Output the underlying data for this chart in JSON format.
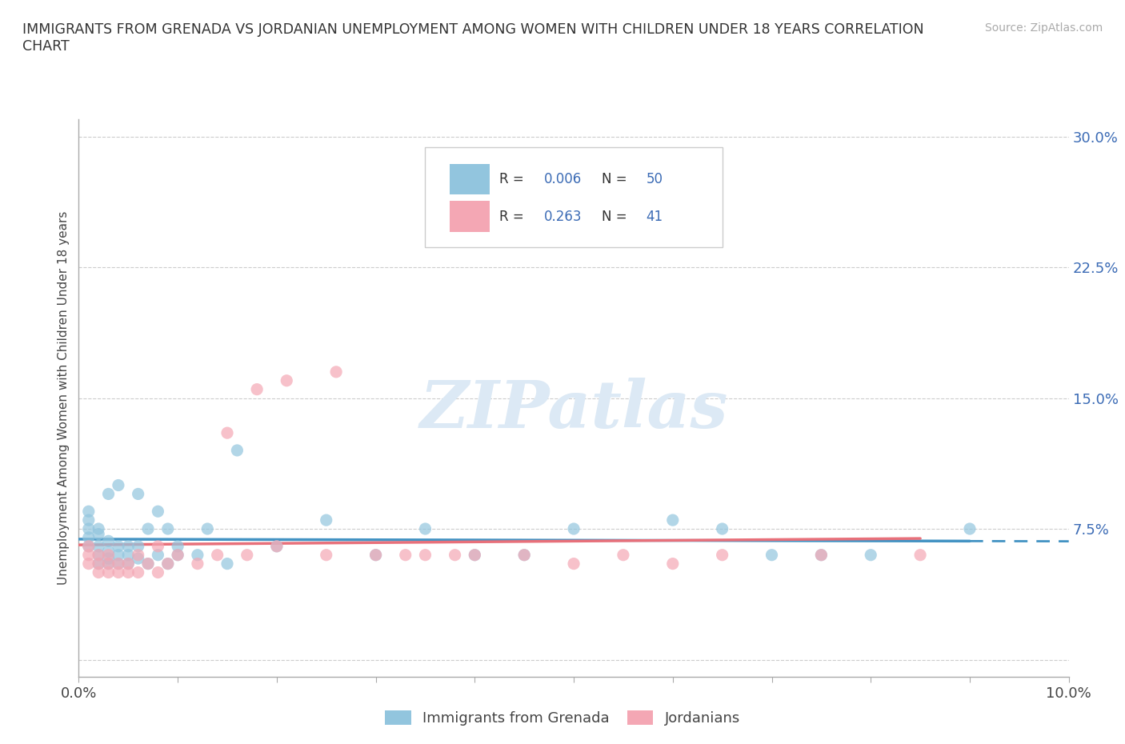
{
  "title": "IMMIGRANTS FROM GRENADA VS JORDANIAN UNEMPLOYMENT AMONG WOMEN WITH CHILDREN UNDER 18 YEARS CORRELATION\nCHART",
  "source": "Source: ZipAtlas.com",
  "ylabel": "Unemployment Among Women with Children Under 18 years",
  "xlim": [
    0.0,
    0.1
  ],
  "ylim": [
    -0.01,
    0.31
  ],
  "xticks": [
    0.0,
    0.01,
    0.02,
    0.03,
    0.04,
    0.05,
    0.06,
    0.07,
    0.08,
    0.09,
    0.1
  ],
  "xticklabels": [
    "0.0%",
    "",
    "",
    "",
    "",
    "",
    "",
    "",
    "",
    "",
    "10.0%"
  ],
  "yticks": [
    0.0,
    0.075,
    0.15,
    0.225,
    0.3
  ],
  "yticklabels": [
    "",
    "7.5%",
    "15.0%",
    "22.5%",
    "30.0%"
  ],
  "grenada_color": "#92c5de",
  "jordan_color": "#f4a7b4",
  "grenada_line_color": "#4393c3",
  "jordan_line_color": "#e8707a",
  "legend_color": "#3b6bb5",
  "watermark": "ZIPatlas",
  "watermark_color": "#dce9f5",
  "grenada_x": [
    0.001,
    0.001,
    0.001,
    0.001,
    0.001,
    0.002,
    0.002,
    0.002,
    0.002,
    0.002,
    0.003,
    0.003,
    0.003,
    0.003,
    0.003,
    0.004,
    0.004,
    0.004,
    0.004,
    0.005,
    0.005,
    0.005,
    0.006,
    0.006,
    0.006,
    0.007,
    0.007,
    0.008,
    0.008,
    0.009,
    0.009,
    0.01,
    0.01,
    0.012,
    0.013,
    0.015,
    0.016,
    0.02,
    0.025,
    0.03,
    0.035,
    0.04,
    0.045,
    0.05,
    0.06,
    0.065,
    0.07,
    0.075,
    0.08,
    0.09
  ],
  "grenada_y": [
    0.065,
    0.07,
    0.075,
    0.08,
    0.085,
    0.055,
    0.06,
    0.065,
    0.072,
    0.075,
    0.055,
    0.058,
    0.062,
    0.068,
    0.095,
    0.055,
    0.06,
    0.065,
    0.1,
    0.055,
    0.06,
    0.065,
    0.058,
    0.065,
    0.095,
    0.055,
    0.075,
    0.06,
    0.085,
    0.055,
    0.075,
    0.06,
    0.065,
    0.06,
    0.075,
    0.055,
    0.12,
    0.065,
    0.08,
    0.06,
    0.075,
    0.06,
    0.06,
    0.075,
    0.08,
    0.075,
    0.06,
    0.06,
    0.06,
    0.075
  ],
  "jordan_x": [
    0.001,
    0.001,
    0.001,
    0.002,
    0.002,
    0.002,
    0.003,
    0.003,
    0.003,
    0.004,
    0.004,
    0.005,
    0.005,
    0.006,
    0.006,
    0.007,
    0.008,
    0.008,
    0.009,
    0.01,
    0.012,
    0.014,
    0.015,
    0.017,
    0.018,
    0.02,
    0.021,
    0.025,
    0.026,
    0.03,
    0.033,
    0.035,
    0.038,
    0.04,
    0.045,
    0.05,
    0.055,
    0.06,
    0.065,
    0.075,
    0.085
  ],
  "jordan_y": [
    0.055,
    0.06,
    0.065,
    0.05,
    0.055,
    0.06,
    0.05,
    0.055,
    0.06,
    0.05,
    0.055,
    0.05,
    0.055,
    0.05,
    0.06,
    0.055,
    0.05,
    0.065,
    0.055,
    0.06,
    0.055,
    0.06,
    0.13,
    0.06,
    0.155,
    0.065,
    0.16,
    0.06,
    0.165,
    0.06,
    0.06,
    0.06,
    0.06,
    0.06,
    0.06,
    0.055,
    0.06,
    0.055,
    0.06,
    0.06,
    0.06
  ]
}
